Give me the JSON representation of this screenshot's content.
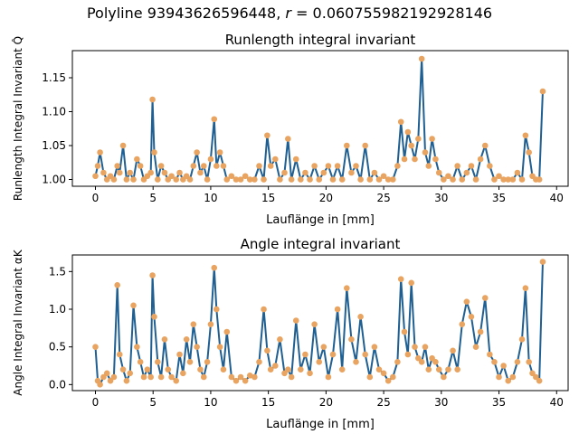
{
  "figure": {
    "suptitle": "Polyline 93943626596448, r = 0.060755982192928146"
  },
  "colors": {
    "line": "#1f5f91",
    "marker": "#e8a460",
    "axes": "#000000",
    "background": "#ffffff"
  },
  "chart_data": [
    {
      "type": "line",
      "title": "Runlength integral invariant",
      "xlabel": "Lauflänge in [mm]",
      "ylabel": "Runlength Integral Invariant Q̂",
      "xlim": [
        -2,
        41
      ],
      "ylim": [
        0.99,
        1.19
      ],
      "xticks": [
        0,
        5,
        10,
        15,
        20,
        25,
        30,
        35,
        40
      ],
      "yticks": [
        1.0,
        1.05,
        1.1,
        1.15
      ],
      "ytick_labels": [
        "1.00",
        "1.05",
        "1.10",
        "1.15"
      ],
      "grid": false,
      "markers": true,
      "x": [
        0.0,
        0.2,
        0.4,
        0.7,
        1.0,
        1.3,
        1.6,
        1.9,
        2.1,
        2.4,
        2.7,
        3.0,
        3.3,
        3.6,
        3.9,
        4.2,
        4.5,
        4.8,
        4.95,
        5.1,
        5.4,
        5.7,
        6.0,
        6.3,
        6.6,
        7.0,
        7.3,
        7.6,
        7.9,
        8.2,
        8.5,
        8.8,
        9.1,
        9.4,
        9.7,
        10.0,
        10.3,
        10.5,
        10.8,
        11.1,
        11.4,
        11.8,
        12.2,
        12.6,
        13.0,
        13.4,
        13.8,
        14.2,
        14.6,
        14.9,
        15.2,
        15.6,
        16.0,
        16.4,
        16.7,
        17.0,
        17.4,
        17.8,
        18.2,
        18.6,
        19.0,
        19.4,
        19.8,
        20.2,
        20.6,
        21.0,
        21.4,
        21.8,
        22.2,
        22.6,
        23.0,
        23.4,
        23.8,
        24.2,
        24.6,
        25.0,
        25.4,
        25.8,
        26.2,
        26.5,
        26.8,
        27.1,
        27.4,
        27.7,
        28.0,
        28.3,
        28.6,
        28.9,
        29.2,
        29.5,
        29.8,
        30.2,
        30.6,
        31.0,
        31.4,
        31.8,
        32.2,
        32.6,
        33.0,
        33.4,
        33.8,
        34.2,
        34.6,
        35.0,
        35.4,
        35.8,
        36.2,
        36.6,
        37.0,
        37.3,
        37.6,
        37.9,
        38.2,
        38.5,
        38.8
      ],
      "y": [
        1.005,
        1.02,
        1.04,
        1.01,
        1.0,
        1.005,
        1.0,
        1.02,
        1.01,
        1.05,
        1.0,
        1.01,
        1.0,
        1.03,
        1.02,
        1.0,
        1.005,
        1.01,
        1.118,
        1.04,
        1.0,
        1.02,
        1.01,
        1.0,
        1.005,
        1.0,
        1.01,
        1.0,
        1.005,
        1.0,
        1.02,
        1.04,
        1.01,
        1.02,
        1.0,
        1.03,
        1.089,
        1.02,
        1.04,
        1.02,
        1.0,
        1.005,
        1.0,
        1.0,
        1.005,
        1.0,
        1.0,
        1.02,
        1.0,
        1.065,
        1.02,
        1.03,
        1.0,
        1.01,
        1.06,
        1.0,
        1.03,
        1.0,
        1.01,
        1.0,
        1.02,
        1.0,
        1.01,
        1.02,
        1.0,
        1.02,
        1.0,
        1.05,
        1.01,
        1.02,
        1.0,
        1.05,
        1.0,
        1.01,
        1.0,
        1.005,
        1.0,
        1.0,
        1.02,
        1.085,
        1.03,
        1.07,
        1.05,
        1.03,
        1.06,
        1.178,
        1.04,
        1.02,
        1.06,
        1.03,
        1.01,
        1.0,
        1.005,
        1.0,
        1.02,
        1.0,
        1.01,
        1.02,
        1.0,
        1.03,
        1.05,
        1.02,
        1.0,
        1.005,
        1.0,
        1.0,
        1.0,
        1.01,
        1.0,
        1.065,
        1.04,
        1.005,
        1.0,
        1.0,
        1.13
      ]
    },
    {
      "type": "line",
      "title": "Angle integral invariant",
      "xlabel": "Lauflänge in [mm]",
      "ylabel": "Angle Integral Invariant αK",
      "xlim": [
        -2,
        41
      ],
      "ylim": [
        -0.08,
        1.72
      ],
      "xticks": [
        0,
        5,
        10,
        15,
        20,
        25,
        30,
        35,
        40
      ],
      "yticks": [
        0.0,
        0.5,
        1.0,
        1.5
      ],
      "ytick_labels": [
        "0.0",
        "0.5",
        "1.0",
        "1.5"
      ],
      "grid": false,
      "markers": true,
      "x": [
        0.0,
        0.2,
        0.4,
        0.7,
        1.0,
        1.3,
        1.6,
        1.9,
        2.1,
        2.4,
        2.7,
        3.0,
        3.3,
        3.6,
        3.9,
        4.2,
        4.5,
        4.8,
        4.95,
        5.1,
        5.4,
        5.7,
        6.0,
        6.3,
        6.6,
        7.0,
        7.3,
        7.6,
        7.9,
        8.2,
        8.5,
        8.8,
        9.1,
        9.4,
        9.7,
        10.0,
        10.3,
        10.5,
        10.8,
        11.1,
        11.4,
        11.8,
        12.2,
        12.6,
        13.0,
        13.4,
        13.8,
        14.2,
        14.6,
        14.9,
        15.2,
        15.6,
        16.0,
        16.4,
        16.7,
        17.0,
        17.4,
        17.8,
        18.2,
        18.6,
        19.0,
        19.4,
        19.8,
        20.2,
        20.6,
        21.0,
        21.4,
        21.8,
        22.2,
        22.6,
        23.0,
        23.4,
        23.8,
        24.2,
        24.6,
        25.0,
        25.4,
        25.8,
        26.2,
        26.5,
        26.8,
        27.1,
        27.4,
        27.7,
        28.0,
        28.3,
        28.6,
        28.9,
        29.2,
        29.5,
        29.8,
        30.2,
        30.6,
        31.0,
        31.4,
        31.8,
        32.2,
        32.6,
        33.0,
        33.4,
        33.8,
        34.2,
        34.6,
        35.0,
        35.4,
        35.8,
        36.2,
        36.6,
        37.0,
        37.3,
        37.6,
        37.9,
        38.2,
        38.5,
        38.8
      ],
      "y": [
        0.5,
        0.05,
        0.0,
        0.1,
        0.15,
        0.05,
        0.1,
        1.32,
        0.4,
        0.2,
        0.05,
        0.15,
        1.05,
        0.5,
        0.3,
        0.1,
        0.2,
        0.1,
        1.45,
        0.9,
        0.3,
        0.1,
        0.6,
        0.2,
        0.1,
        0.05,
        0.4,
        0.15,
        0.6,
        0.3,
        0.8,
        0.5,
        0.2,
        0.1,
        0.3,
        0.8,
        1.55,
        1.0,
        0.5,
        0.2,
        0.7,
        0.1,
        0.05,
        0.1,
        0.05,
        0.12,
        0.1,
        0.3,
        1.0,
        0.45,
        0.2,
        0.25,
        0.6,
        0.15,
        0.2,
        0.1,
        0.85,
        0.2,
        0.4,
        0.15,
        0.8,
        0.3,
        0.5,
        0.1,
        0.4,
        1.0,
        0.2,
        1.28,
        0.6,
        0.3,
        0.9,
        0.4,
        0.1,
        0.5,
        0.2,
        0.15,
        0.05,
        0.1,
        0.3,
        1.4,
        0.7,
        0.4,
        1.35,
        0.5,
        0.35,
        0.3,
        0.5,
        0.2,
        0.35,
        0.3,
        0.2,
        0.1,
        0.2,
        0.45,
        0.2,
        0.8,
        1.1,
        0.9,
        0.5,
        0.7,
        1.15,
        0.4,
        0.3,
        0.1,
        0.25,
        0.05,
        0.1,
        0.3,
        0.6,
        1.28,
        0.3,
        0.15,
        0.1,
        0.05,
        1.63
      ]
    }
  ]
}
